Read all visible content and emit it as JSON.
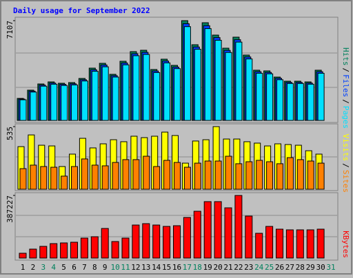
{
  "chart_data": {
    "type": "bar",
    "title": "Daily usage for September 2022",
    "categories": [
      "1",
      "2",
      "3",
      "4",
      "5",
      "6",
      "7",
      "8",
      "9",
      "10",
      "11",
      "12",
      "13",
      "14",
      "15",
      "16",
      "17",
      "18",
      "19",
      "20",
      "21",
      "22",
      "23",
      "24",
      "25",
      "26",
      "27",
      "28",
      "29",
      "30",
      "31"
    ],
    "category_colors": [
      "#000000",
      "#000000",
      "#00805c",
      "#00805c",
      "#000000",
      "#000000",
      "#000000",
      "#000000",
      "#000000",
      "#00805c",
      "#00805c",
      "#000000",
      "#000000",
      "#000000",
      "#000000",
      "#000000",
      "#00805c",
      "#00805c",
      "#000000",
      "#000000",
      "#000000",
      "#000000",
      "#000000",
      "#00805c",
      "#00805c",
      "#000000",
      "#000000",
      "#000000",
      "#000000",
      "#000000",
      "#00805c"
    ],
    "legend_separator": "/",
    "panels": [
      {
        "ylim": [
          0,
          7107
        ],
        "yticks": [
          7107
        ],
        "series": [
          {
            "name": "Hits",
            "color": "#00805c",
            "values": [
              1568,
              2157,
              2598,
              2745,
              2647,
              2696,
              2990,
              3725,
              4068,
              3284,
              4215,
              4901,
              4999,
              3627,
              4362,
              3921,
              7107,
              5392,
              6960,
              6078,
              5146,
              5931,
              4656,
              3578,
              3529,
              3088,
              2794,
              2794,
              2745,
              3578,
              null
            ]
          },
          {
            "name": "Files",
            "color": "#0040ff",
            "values": [
              1520,
              2090,
              2520,
              2660,
              2570,
              2610,
              2900,
              3610,
              3950,
              3190,
              4090,
              4750,
              4850,
              3520,
              4230,
              3800,
              6890,
              5230,
              6750,
              5900,
              4990,
              5750,
              4520,
              3470,
              3420,
              3000,
              2710,
              2710,
              2660,
              3470,
              null
            ]
          },
          {
            "name": "Pages",
            "color": "#00e0ff",
            "values": [
              1470,
              2020,
              2440,
              2580,
              2490,
              2530,
              2810,
              3500,
              3820,
              3090,
              3960,
              4610,
              4700,
              3410,
              4100,
              3690,
              6680,
              5070,
              6540,
              5710,
              4840,
              5580,
              4380,
              3360,
              3320,
              2900,
              2630,
              2630,
              2580,
              3360,
              null
            ]
          }
        ]
      },
      {
        "ylim": [
          0,
          535
        ],
        "yticks": [
          535
        ],
        "series": [
          {
            "name": "Visits",
            "color": "#ffff00",
            "values": [
              364,
              464,
              376,
              370,
              194,
              300,
              435,
              353,
              388,
              423,
              406,
              453,
              441,
              453,
              488,
              459,
              223,
              412,
              423,
              535,
              429,
              429,
              406,
              394,
              370,
              388,
              382,
              376,
              329,
              300,
              null
            ]
          },
          {
            "name": "Sites",
            "color": "#ff8000",
            "values": [
              176,
              206,
              194,
              188,
              112,
              194,
              259,
              206,
              200,
              229,
              253,
              253,
              282,
              194,
              247,
              229,
              188,
              223,
              241,
              241,
              282,
              218,
              235,
              247,
              235,
              218,
              270,
              253,
              241,
              223,
              null
            ]
          }
        ]
      },
      {
        "ylim": [
          0,
          387227
        ],
        "yticks": [
          387227
        ],
        "series": [
          {
            "name": "KBytes",
            "color": "#ff0000",
            "values": [
              29787,
              55318,
              72339,
              89359,
              93614,
              97870,
              123401,
              131912,
              182975,
              102125,
              123401,
              204251,
              212762,
              204251,
              195742,
              199996,
              251059,
              289356,
              348930,
              348930,
              310632,
              387227,
              259570,
              153188,
              195742,
              178720,
              174466,
              174466,
              174466,
              178720,
              null
            ]
          }
        ]
      }
    ]
  }
}
